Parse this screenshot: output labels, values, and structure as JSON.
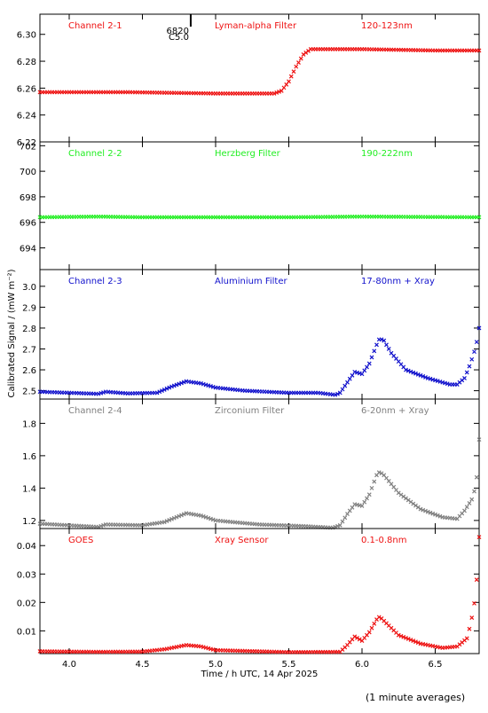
{
  "xlabel": "Time / h UTC, 14 Apr 2025",
  "ylabel": "Calibrated Signal / (mW m⁻²)",
  "footnote": "(1 minute averages)",
  "x_ticks": [
    4.0,
    4.5,
    5.0,
    5.5,
    6.0,
    6.5
  ],
  "xlim": [
    3.8,
    6.8
  ],
  "marker": {
    "x": 4.83,
    "label1": "6820",
    "label2": "C5.0"
  },
  "chart_data": [
    {
      "type": "scatter",
      "labels": [
        "Channel 2-1",
        "Lyman-alpha Filter",
        "120-123nm"
      ],
      "color": "#ee1111",
      "ylim": [
        6.22,
        6.315
      ],
      "y_ticks": [
        6.22,
        6.24,
        6.26,
        6.28,
        6.3
      ],
      "y_tick_labels": [
        "6.22",
        "6.24",
        "6.26",
        "6.28",
        "6.30"
      ],
      "points": [
        [
          3.8,
          6.257
        ],
        [
          4.4,
          6.257
        ],
        [
          5.0,
          6.256
        ],
        [
          5.4,
          6.256
        ],
        [
          5.45,
          6.258
        ],
        [
          5.5,
          6.265
        ],
        [
          5.55,
          6.276
        ],
        [
          5.6,
          6.285
        ],
        [
          5.65,
          6.289
        ],
        [
          6.0,
          6.289
        ],
        [
          6.5,
          6.288
        ],
        [
          6.8,
          6.288
        ]
      ]
    },
    {
      "type": "scatter",
      "labels": [
        "Channel 2-2",
        "Herzberg Filter",
        "190-222nm"
      ],
      "color": "#22ee22",
      "ylim": [
        692.3,
        702.3
      ],
      "y_ticks": [
        694,
        696,
        698,
        700,
        702
      ],
      "y_tick_labels": [
        "694",
        "696",
        "698",
        "700",
        "702"
      ],
      "points": [
        [
          3.8,
          696.4
        ],
        [
          4.2,
          696.45
        ],
        [
          4.5,
          696.4
        ],
        [
          5.0,
          696.4
        ],
        [
          5.5,
          696.4
        ],
        [
          6.0,
          696.45
        ],
        [
          6.8,
          696.4
        ]
      ]
    },
    {
      "type": "scatter",
      "labels": [
        "Channel 2-3",
        "Aluminium Filter",
        "17-80nm + Xray"
      ],
      "color": "#1111cc",
      "ylim": [
        2.46,
        3.08
      ],
      "y_ticks": [
        2.5,
        2.6,
        2.7,
        2.8,
        2.9,
        3.0
      ],
      "y_tick_labels": [
        "2.5",
        "2.6",
        "2.7",
        "2.8",
        "2.9",
        "3.0"
      ],
      "points": [
        [
          3.8,
          2.495
        ],
        [
          4.0,
          2.49
        ],
        [
          4.2,
          2.485
        ],
        [
          4.25,
          2.495
        ],
        [
          4.4,
          2.487
        ],
        [
          4.6,
          2.49
        ],
        [
          4.7,
          2.52
        ],
        [
          4.8,
          2.545
        ],
        [
          4.9,
          2.535
        ],
        [
          5.0,
          2.515
        ],
        [
          5.2,
          2.5
        ],
        [
          5.5,
          2.49
        ],
        [
          5.7,
          2.49
        ],
        [
          5.82,
          2.48
        ],
        [
          5.85,
          2.49
        ],
        [
          5.9,
          2.54
        ],
        [
          5.95,
          2.59
        ],
        [
          6.0,
          2.58
        ],
        [
          6.05,
          2.63
        ],
        [
          6.1,
          2.72
        ],
        [
          6.12,
          2.75
        ],
        [
          6.15,
          2.74
        ],
        [
          6.2,
          2.68
        ],
        [
          6.3,
          2.6
        ],
        [
          6.45,
          2.56
        ],
        [
          6.6,
          2.53
        ],
        [
          6.65,
          2.53
        ],
        [
          6.7,
          2.56
        ],
        [
          6.73,
          2.61
        ],
        [
          6.76,
          2.67
        ],
        [
          6.78,
          2.72
        ],
        [
          6.8,
          2.8
        ]
      ]
    },
    {
      "type": "scatter",
      "labels": [
        "Channel 2-4",
        "Zirconium Filter",
        "6-20nm + Xray"
      ],
      "color": "#808080",
      "ylim": [
        1.15,
        1.95
      ],
      "y_ticks": [
        1.2,
        1.4,
        1.6,
        1.8
      ],
      "y_tick_labels": [
        "1.2",
        "1.4",
        "1.6",
        "1.8"
      ],
      "points": [
        [
          3.8,
          1.18
        ],
        [
          4.0,
          1.17
        ],
        [
          4.2,
          1.16
        ],
        [
          4.25,
          1.175
        ],
        [
          4.5,
          1.17
        ],
        [
          4.65,
          1.19
        ],
        [
          4.8,
          1.245
        ],
        [
          4.9,
          1.23
        ],
        [
          5.0,
          1.2
        ],
        [
          5.3,
          1.175
        ],
        [
          5.6,
          1.165
        ],
        [
          5.8,
          1.155
        ],
        [
          5.85,
          1.17
        ],
        [
          5.9,
          1.24
        ],
        [
          5.95,
          1.3
        ],
        [
          6.0,
          1.29
        ],
        [
          6.05,
          1.36
        ],
        [
          6.1,
          1.48
        ],
        [
          6.12,
          1.5
        ],
        [
          6.15,
          1.48
        ],
        [
          6.25,
          1.37
        ],
        [
          6.4,
          1.27
        ],
        [
          6.55,
          1.22
        ],
        [
          6.65,
          1.21
        ],
        [
          6.7,
          1.26
        ],
        [
          6.75,
          1.33
        ],
        [
          6.78,
          1.42
        ],
        [
          6.8,
          1.7
        ]
      ]
    },
    {
      "type": "scatter",
      "labels": [
        "GOES",
        "Xray Sensor",
        "0.1-0.8nm"
      ],
      "color": "#ee1111",
      "ylim": [
        0.002,
        0.046
      ],
      "y_ticks": [
        0.01,
        0.02,
        0.03,
        0.04
      ],
      "y_tick_labels": [
        "0.01",
        "0.02",
        "0.03",
        "0.04"
      ],
      "points": [
        [
          3.8,
          0.0028
        ],
        [
          4.2,
          0.0026
        ],
        [
          4.5,
          0.0027
        ],
        [
          4.65,
          0.0035
        ],
        [
          4.8,
          0.005
        ],
        [
          4.9,
          0.0045
        ],
        [
          5.0,
          0.0032
        ],
        [
          5.5,
          0.0025
        ],
        [
          5.85,
          0.0026
        ],
        [
          5.9,
          0.005
        ],
        [
          5.95,
          0.008
        ],
        [
          6.0,
          0.0065
        ],
        [
          6.05,
          0.0095
        ],
        [
          6.1,
          0.014
        ],
        [
          6.12,
          0.015
        ],
        [
          6.15,
          0.0135
        ],
        [
          6.25,
          0.0085
        ],
        [
          6.4,
          0.0055
        ],
        [
          6.55,
          0.004
        ],
        [
          6.65,
          0.0045
        ],
        [
          6.72,
          0.0075
        ],
        [
          6.76,
          0.017
        ],
        [
          6.78,
          0.025
        ],
        [
          6.8,
          0.043
        ]
      ]
    }
  ]
}
